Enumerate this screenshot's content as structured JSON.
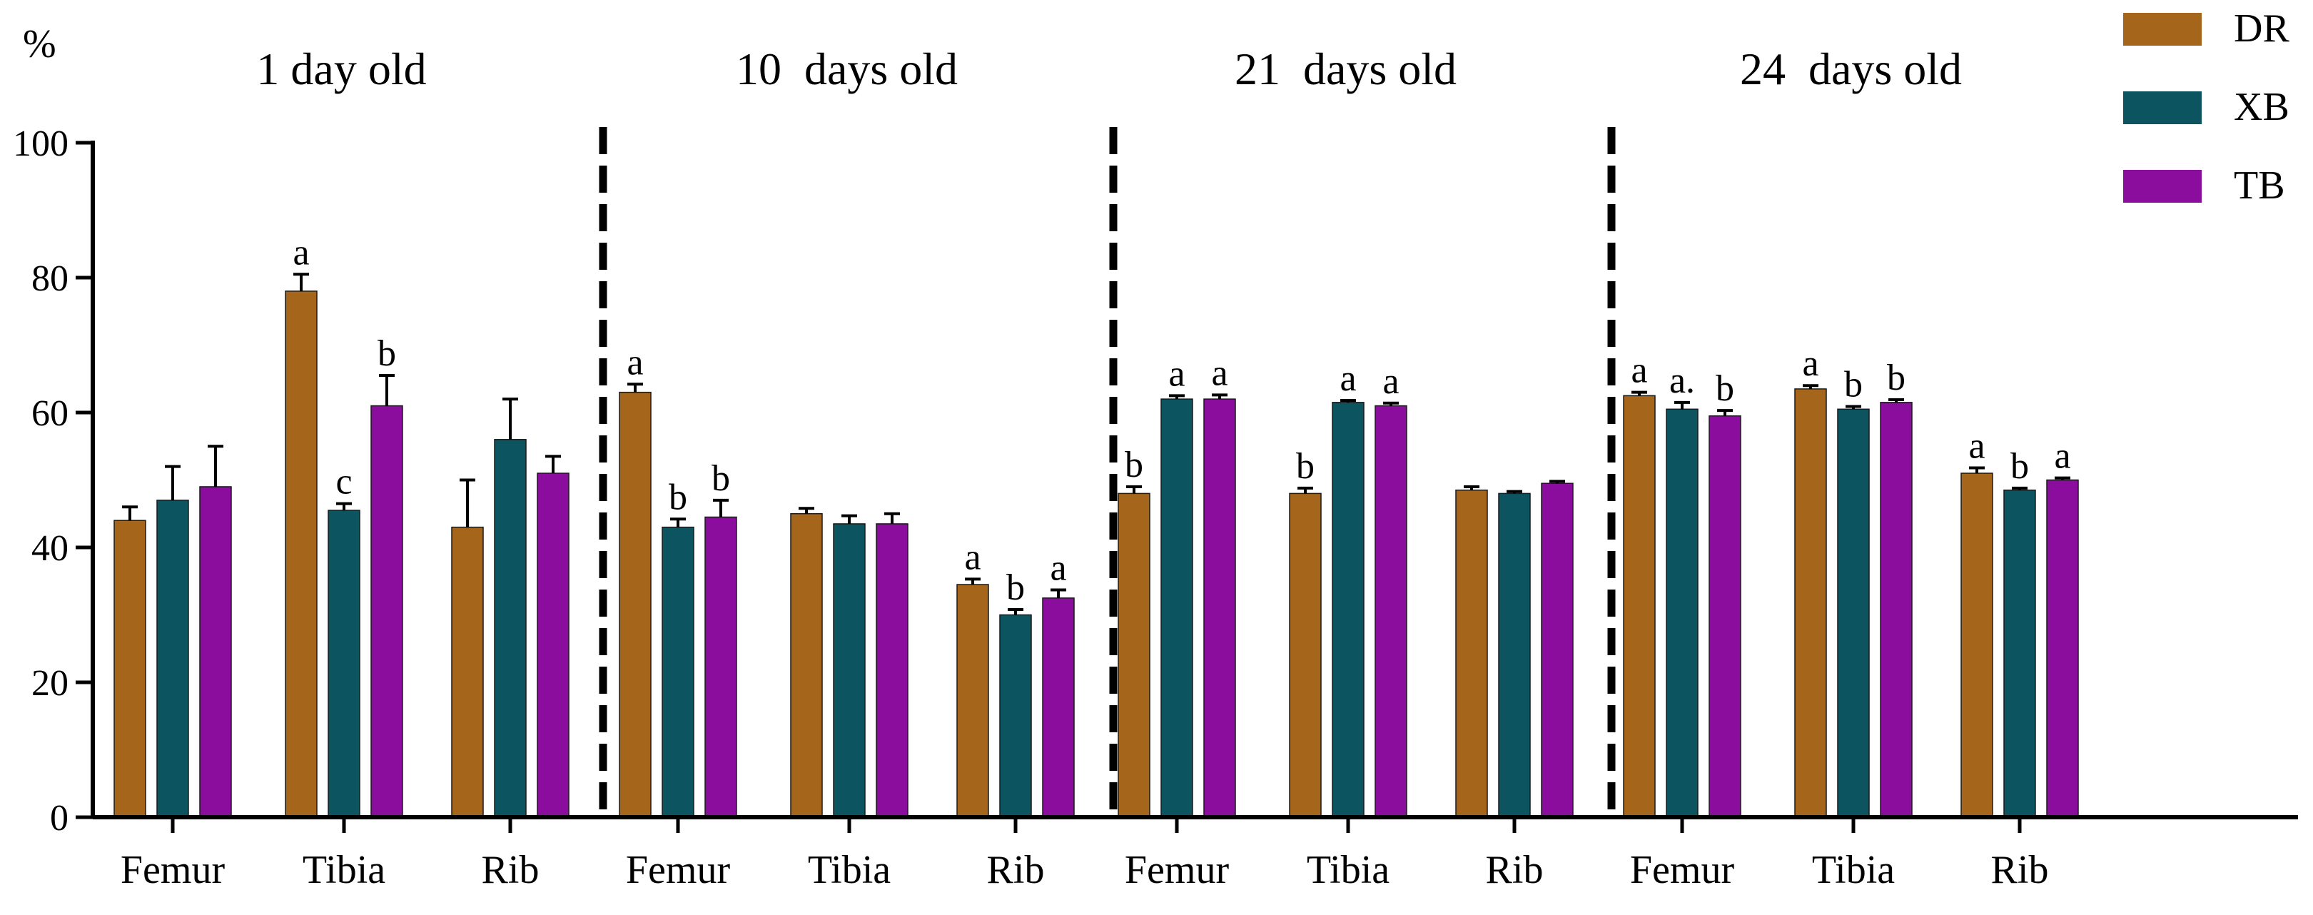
{
  "chart_data": {
    "type": "bar",
    "ylabel": "%",
    "ylim": [
      0,
      100
    ],
    "yticks": [
      0,
      20,
      40,
      60,
      80,
      100
    ],
    "groups": [
      "1 day old",
      "10  days old",
      "21  days old",
      "24  days old"
    ],
    "categories": [
      "Femur",
      "Tibia",
      "Rib"
    ],
    "series": [
      {
        "name": "DR",
        "color": "#A5651A",
        "values": [
          [
            44,
            78,
            43
          ],
          [
            63,
            45,
            34.5
          ],
          [
            48,
            48,
            48.5
          ],
          [
            62.5,
            63.5,
            51
          ]
        ],
        "errors": [
          [
            2,
            2.5,
            7
          ],
          [
            1.2,
            0.8,
            0.8
          ],
          [
            1,
            0.8,
            0.5
          ],
          [
            0.5,
            0.5,
            0.8
          ]
        ],
        "letters": [
          [
            "",
            "a",
            ""
          ],
          [
            "a",
            "",
            "a"
          ],
          [
            "b",
            "b",
            ""
          ],
          [
            "a",
            "a",
            "a"
          ]
        ]
      },
      {
        "name": "XB",
        "color": "#0D5461",
        "values": [
          [
            47,
            45.5,
            56
          ],
          [
            43,
            43.5,
            30
          ],
          [
            62,
            61.5,
            48
          ],
          [
            60.5,
            60.5,
            48.5
          ]
        ],
        "errors": [
          [
            5,
            1,
            6
          ],
          [
            1.2,
            1.2,
            0.8
          ],
          [
            0.5,
            0.3,
            0.3
          ],
          [
            1,
            0.4,
            0.3
          ]
        ],
        "letters": [
          [
            "",
            "c",
            ""
          ],
          [
            "b",
            "",
            "b"
          ],
          [
            "a",
            "a",
            ""
          ],
          [
            "a.",
            "b",
            "b"
          ]
        ]
      },
      {
        "name": "TB",
        "color": "#8B0D9E",
        "values": [
          [
            49,
            61,
            51
          ],
          [
            44.5,
            43.5,
            32.5
          ],
          [
            62,
            61,
            49.5
          ],
          [
            59.5,
            61.5,
            50
          ]
        ],
        "errors": [
          [
            6,
            4.5,
            2.5
          ],
          [
            2.5,
            1.5,
            1.2
          ],
          [
            0.6,
            0.4,
            0.3
          ],
          [
            0.8,
            0.4,
            0.3
          ]
        ],
        "letters": [
          [
            "",
            "b",
            ""
          ],
          [
            "b",
            "",
            "a"
          ],
          [
            "a",
            "a",
            ""
          ],
          [
            "b",
            "b",
            "a"
          ]
        ]
      }
    ],
    "legend": [
      "DR",
      "XB",
      "TB"
    ]
  }
}
